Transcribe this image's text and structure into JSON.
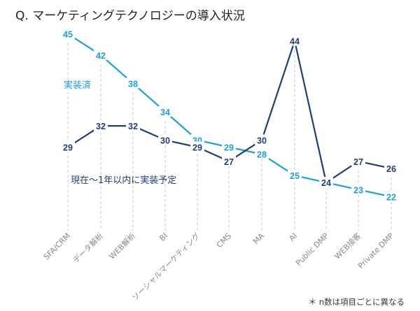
{
  "title": "Q. マーケティングテクノロジーの導入状況",
  "footnote": "＊ n数は項目ごとに異なる",
  "colors": {
    "implemented": "#1ca1d8",
    "planned": "#1f3f73",
    "grid": "#c8c8c8"
  },
  "chart_data": {
    "type": "line",
    "title": "Q. マーケティングテクノロジーの導入状況",
    "categories": [
      "SFA/CRM",
      "データ解析",
      "WEB解析",
      "BI",
      "ソーシャルマーケティング",
      "CMS",
      "MA",
      "AI",
      "Public DMP",
      "WEB接客",
      "Private DMP"
    ],
    "series": [
      {
        "name": "実装済",
        "values": [
          45,
          42,
          38,
          34,
          30,
          29,
          28,
          25,
          24,
          23,
          22
        ]
      },
      {
        "name": "現在～1年以内に実装予定",
        "values": [
          29,
          32,
          32,
          30,
          29,
          27,
          30,
          44,
          24,
          27,
          26
        ]
      }
    ],
    "ylim": [
      18,
      48
    ],
    "grid": "vertical dashed",
    "legend": "inline labels"
  }
}
